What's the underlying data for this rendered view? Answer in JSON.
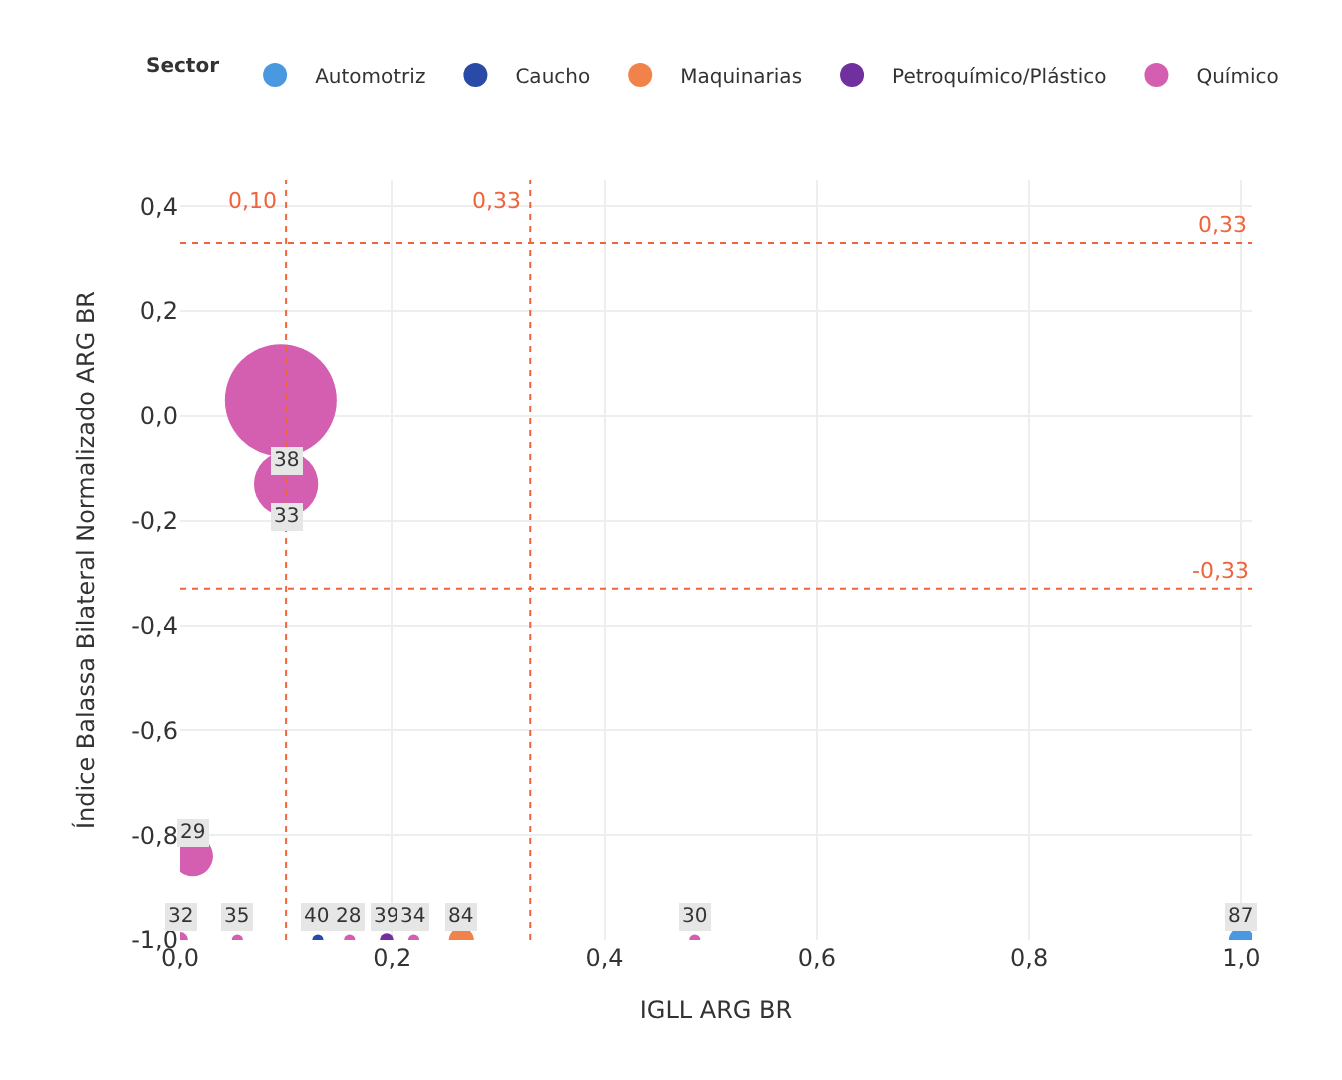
{
  "chart_data": {
    "type": "bubble",
    "xlabel": "IGLL ARG BR",
    "ylabel": "Índice Balassa Bilateral Normalizado ARG BR",
    "legend_title": "Sector",
    "series": [
      {
        "name": "Automotriz",
        "color": "#4a98e0",
        "x": [
          1.0
        ],
        "values": [
          -1.0
        ],
        "sizes": [
          0.05
        ]
      },
      {
        "name": "Caucho",
        "color": "#2a4aa8",
        "x": [
          0.13
        ],
        "values": [
          -1.0
        ],
        "sizes": [
          0.01
        ]
      },
      {
        "name": "Maquinarias",
        "color": "#f0824a",
        "x": [
          0.265
        ],
        "values": [
          -1.0
        ],
        "sizes": [
          0.05
        ]
      },
      {
        "name": "Petroquímico/Plástico",
        "color": "#7030a0",
        "x": [
          0.195
        ],
        "values": [
          -1.0
        ],
        "sizes": [
          0.015
        ]
      },
      {
        "name": "Químico",
        "color": "#d45fb0",
        "x": [
          0.095,
          0.1,
          0.012,
          0.0,
          0.054,
          0.16,
          0.22,
          0.485
        ],
        "values": [
          0.03,
          -0.13,
          -0.84,
          -1.0,
          -1.0,
          -1.0,
          -1.0,
          -1.0
        ],
        "sizes": [
          1,
          0.33,
          0.13,
          0.02,
          0.01,
          0.01,
          0.01,
          0.01
        ]
      }
    ],
    "annotations": [
      {
        "text": "87",
        "x": 1.0,
        "y": -1.0
      },
      {
        "text": "40",
        "x": 0.13,
        "y": -1.0
      },
      {
        "text": "84",
        "x": 0.265,
        "y": -1.0
      },
      {
        "text": "39",
        "x": 0.195,
        "y": -1.0
      },
      {
        "text": "38",
        "x": 0.1,
        "y": -0.13
      },
      {
        "text": "33",
        "x": 0.1,
        "y": -0.24
      },
      {
        "text": "29",
        "x": 0.012,
        "y": -0.84
      },
      {
        "text": "32",
        "x": 0.0,
        "y": -1.0
      },
      {
        "text": "35",
        "x": 0.054,
        "y": -1.0
      },
      {
        "text": "28",
        "x": 0.16,
        "y": -1.0
      },
      {
        "text": "34",
        "x": 0.22,
        "y": -1.0
      },
      {
        "text": "30",
        "x": 0.485,
        "y": -1.0
      }
    ],
    "xlim": [
      0,
      1.01
    ],
    "ylim": [
      -1.0,
      0.45
    ],
    "xticks": [
      {
        "value": 0,
        "label": "0,0"
      },
      {
        "value": 0.2,
        "label": "0,2"
      },
      {
        "value": 0.4,
        "label": "0,4"
      },
      {
        "value": 0.6,
        "label": "0,6"
      },
      {
        "value": 0.8,
        "label": "0,8"
      },
      {
        "value": 1.0,
        "label": "1,0"
      }
    ],
    "yticks": [
      {
        "value": -1.0,
        "label": "-1,0"
      },
      {
        "value": -0.8,
        "label": "-0,8"
      },
      {
        "value": -0.6,
        "label": "-0,6"
      },
      {
        "value": -0.4,
        "label": "-0,4"
      },
      {
        "value": -0.2,
        "label": "-0,2"
      },
      {
        "value": 0,
        "label": "0,0"
      },
      {
        "value": 0.2,
        "label": "0,2"
      },
      {
        "value": 0.4,
        "label": "0,4"
      }
    ],
    "ref_lines": [
      {
        "axis": "x",
        "value": 0.1,
        "label": "0,10",
        "color": "#f0643c",
        "line_style": "dotted"
      },
      {
        "axis": "x",
        "value": 0.33,
        "label": "0,33",
        "color": "#f0643c",
        "line_style": "dotted"
      },
      {
        "axis": "y",
        "value": 0.33,
        "label": "0,33",
        "color": "#f0643c",
        "line_style": "dotted"
      },
      {
        "axis": "y",
        "value": -0.33,
        "label": "-0,33",
        "color": "#f0643c",
        "line_style": "dotted"
      }
    ],
    "grid": true,
    "legend": "top",
    "marker": "circle"
  }
}
